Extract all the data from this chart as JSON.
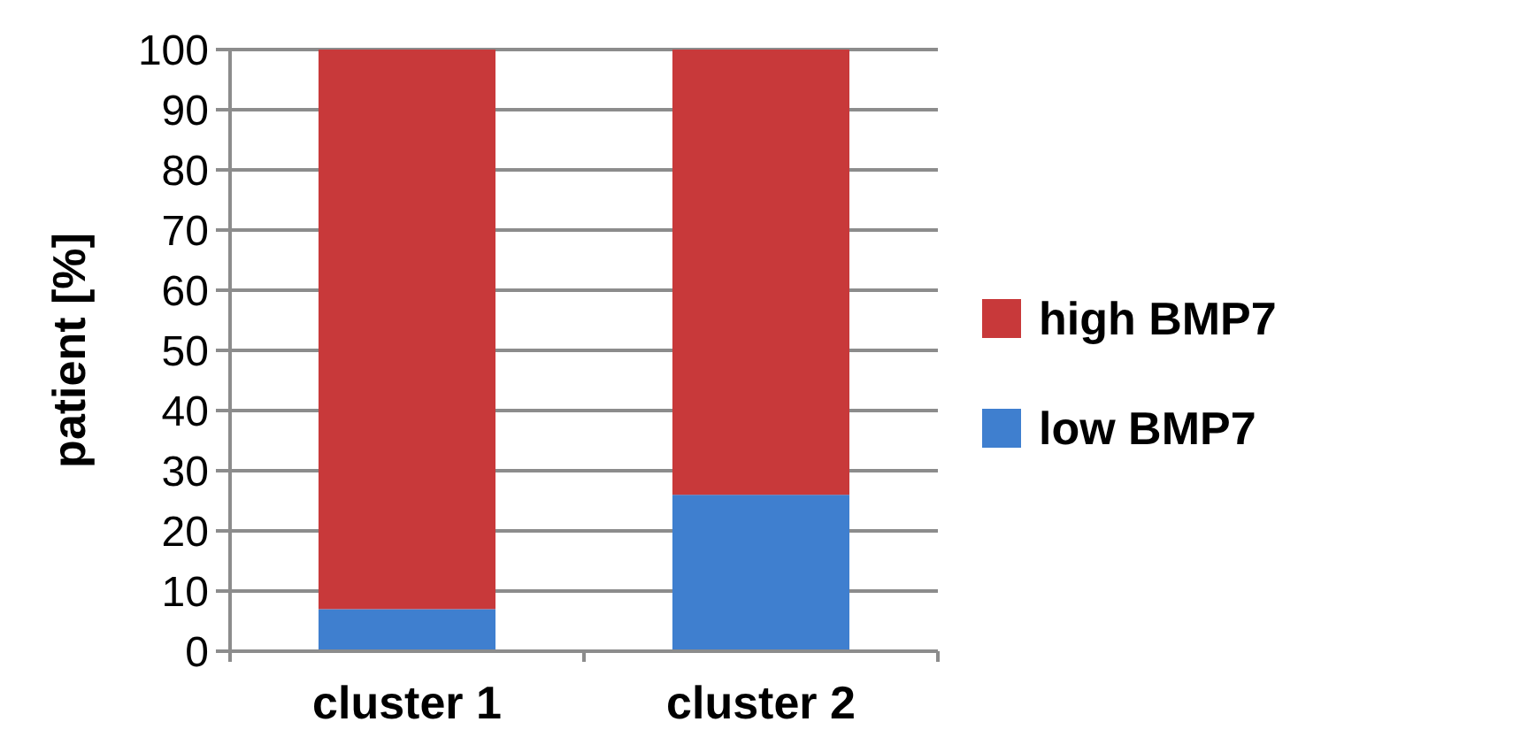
{
  "chart_data": {
    "type": "bar",
    "stacked": true,
    "ylabel": "patient [%]",
    "categories": [
      "cluster 1",
      "cluster 2"
    ],
    "series": [
      {
        "name": "low BMP7",
        "color": "#3f7fcf",
        "values": [
          7,
          26
        ]
      },
      {
        "name": "high BMP7",
        "color": "#c8393a",
        "values": [
          93,
          74
        ]
      }
    ],
    "ylim": [
      0,
      100
    ],
    "yticks": [
      0,
      10,
      20,
      30,
      40,
      50,
      60,
      70,
      80,
      90,
      100
    ],
    "grid": "y",
    "legend": "right"
  }
}
